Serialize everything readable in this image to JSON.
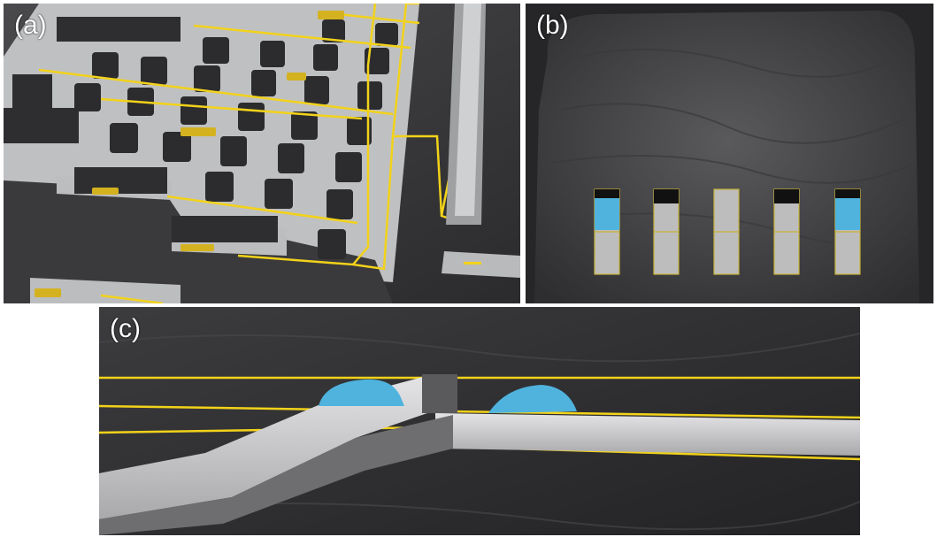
{
  "panels": {
    "a": {
      "label": "(a)"
    },
    "b": {
      "label": "(b)"
    },
    "c": {
      "label": "(c)"
    }
  },
  "colors": {
    "rail": "#f2d21a",
    "floor": "#bfc0c2",
    "rock": "#3f3f41",
    "pillar": "#2c2c2e",
    "ore": "#4fb3dd",
    "stope_border": "#c8b33a"
  }
}
